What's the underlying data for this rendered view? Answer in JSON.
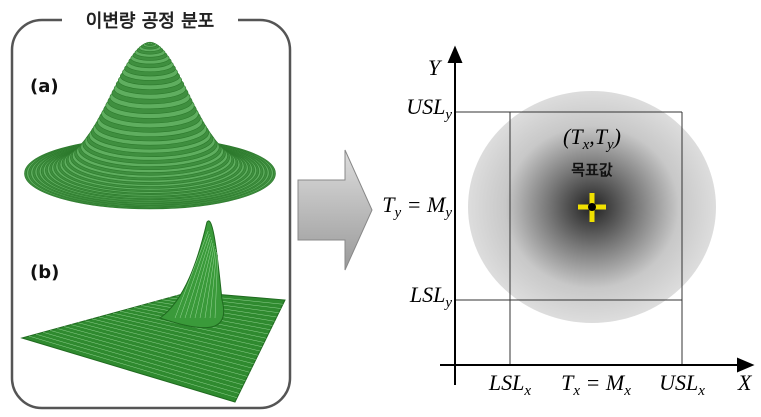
{
  "left_panel": {
    "title": "이변량 공정 분포",
    "labels": [
      "(a)",
      "(b)"
    ]
  },
  "right_panel": {
    "y_axis": "Y",
    "x_axis": "X",
    "y_marks": [
      {
        "base": "USL",
        "sub": "y"
      },
      {
        "base": "T",
        "sub": "y",
        "rest": " = M",
        "sub2": "y"
      },
      {
        "base": "LSL",
        "sub": "y"
      }
    ],
    "x_marks": [
      {
        "base": "LSL",
        "sub": "x"
      },
      {
        "base": "T",
        "sub": "x",
        "rest": " = M",
        "sub2": "x"
      },
      {
        "base": "USL",
        "sub": "x"
      }
    ],
    "target": {
      "open": "(T",
      "sub": "x",
      "mid": ",T",
      "sub2": "y",
      "close": ")",
      "label": "목표값"
    }
  }
}
